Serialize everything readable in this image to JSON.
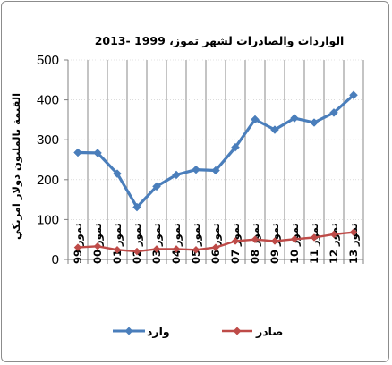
{
  "chart_data": {
    "type": "line",
    "title": "الواردات والصادرات لشهر تموز،  1999 -2013",
    "ylabel": "القيمة بالمليون دولار امريكي",
    "xlabel": "",
    "ylim": [
      0,
      500
    ],
    "yticks": [
      0,
      100,
      200,
      300,
      400,
      500
    ],
    "categories": [
      "تموز 99",
      "تموز 00",
      "تموز 01",
      "تموز 02",
      "تموز 03",
      "تموز 04",
      "تموز 05",
      "تموز 06",
      "تموز 07",
      "تموز 08",
      "تموز 09",
      "تموز 10",
      "تموز 11",
      "تموز 12",
      "تموز 13"
    ],
    "series": [
      {
        "name": "وارد",
        "color": "#4a7ebb",
        "marker": "diamond",
        "values": [
          268,
          267,
          215,
          131,
          183,
          212,
          225,
          223,
          281,
          351,
          325,
          354,
          343,
          368,
          412
        ]
      },
      {
        "name": "صادر",
        "color": "#be4b48",
        "marker": "diamond",
        "values": [
          30,
          33,
          24,
          20,
          26,
          26,
          24,
          30,
          46,
          50,
          46,
          51,
          55,
          63,
          68
        ]
      }
    ],
    "grid": "vertical",
    "legend_position": "bottom"
  }
}
